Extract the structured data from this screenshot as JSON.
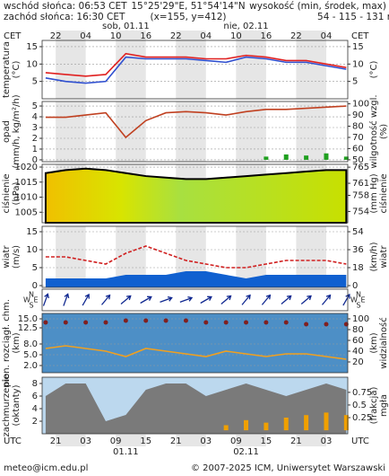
{
  "header": {
    "sunrise": "wschód słońca: 06:53 CET",
    "sunset": "zachód słońca: 16:30 CET",
    "coords": "15°25'29\"E, 51°54'14\"N",
    "grid": "(x=155, y=412)",
    "height_label": "wysokość (min, środek, max)",
    "height": "54 - 115 - 131 m"
  },
  "time": {
    "xlim": [
      -4.7,
      56.3
    ],
    "top_label": "CET",
    "bottom_label": "UTC",
    "top_ticks": [
      {
        "value": -2,
        "label": "22"
      },
      {
        "value": 4,
        "label": "04"
      },
      {
        "value": 10,
        "label": "10"
      },
      {
        "value": 16,
        "label": "16"
      },
      {
        "value": 22,
        "label": "22"
      },
      {
        "value": 28,
        "label": "04"
      },
      {
        "value": 34,
        "label": "10"
      },
      {
        "value": 40,
        "label": "16"
      },
      {
        "value": 46,
        "label": "22"
      },
      {
        "value": 52,
        "label": "04"
      }
    ],
    "bottom_ticks": [
      {
        "value": -2,
        "label": "21"
      },
      {
        "value": 4,
        "label": "03"
      },
      {
        "value": 10,
        "label": "09"
      },
      {
        "value": 16,
        "label": "15"
      },
      {
        "value": 22,
        "label": "21"
      },
      {
        "value": 28,
        "label": "03"
      },
      {
        "value": 34,
        "label": "09"
      },
      {
        "value": 40,
        "label": "15"
      },
      {
        "value": 46,
        "label": "21"
      },
      {
        "value": 52,
        "label": "03"
      }
    ],
    "top_days": [
      {
        "value": 12,
        "label": "sob, 01.11"
      },
      {
        "value": 36,
        "label": "nie, 02.11"
      }
    ],
    "bottom_days": [
      {
        "value": 12,
        "label": "01.11"
      },
      {
        "value": 36,
        "label": "02.11"
      }
    ]
  },
  "compass": [
    "W",
    "N",
    "E",
    "S"
  ],
  "footer": {
    "left": "meteo@icm.edu.pl",
    "right": "© 2007-2025 ICM, Uniwersytet Warszawski"
  },
  "chart_data": [
    {
      "type": "line",
      "ylabel": [
        "temperatura",
        "(°C)"
      ],
      "y2label": [
        "(°C)"
      ],
      "x": [
        -4,
        0,
        4,
        8,
        12,
        16,
        20,
        24,
        28,
        32,
        36,
        40,
        44,
        48,
        52,
        56
      ],
      "ylim": [
        0,
        16.8
      ],
      "yticks": [
        15,
        10,
        5
      ],
      "y2lim": [
        0,
        16.8
      ],
      "y2ticks": [
        15,
        10,
        5
      ],
      "grid": true,
      "series": [
        {
          "kind": "line",
          "color": "#e02020",
          "values": [
            7.5,
            7,
            6.5,
            7,
            13,
            12,
            12,
            12,
            11.5,
            11.5,
            12.5,
            12,
            11,
            11,
            10,
            9
          ]
        },
        {
          "kind": "line",
          "color": "#3050d0",
          "values": [
            6,
            5,
            4.5,
            5,
            12,
            11.5,
            11.5,
            11.5,
            11,
            10.5,
            12,
            11.5,
            10.5,
            10.5,
            9.5,
            8.5
          ]
        }
      ]
    },
    {
      "type": "line",
      "ylabel": [
        "opad",
        "(mm/h, kg/m²/h)"
      ],
      "y2label": [
        "wilgotność wzgl.",
        "(%)"
      ],
      "x": [
        -4,
        0,
        4,
        8,
        12,
        16,
        20,
        24,
        28,
        32,
        36,
        40,
        44,
        48,
        52,
        56
      ],
      "ylim": [
        -0.17,
        5.42
      ],
      "yticks": [
        5,
        4,
        3,
        2,
        1,
        0
      ],
      "y2lim": [
        48.3,
        102.1
      ],
      "y2ticks": [
        100,
        90,
        80,
        70,
        60,
        50
      ],
      "grid": true,
      "series": [
        {
          "kind": "bars",
          "color": "#20a020",
          "values": [
            0,
            0,
            0,
            0,
            0,
            0,
            0,
            0,
            0,
            0,
            0,
            0.3,
            0.5,
            0.4,
            0.6,
            0.3
          ]
        },
        {
          "kind": "line",
          "axis": "y2",
          "color": "#c04020",
          "values": [
            88,
            88,
            90,
            92,
            70,
            85,
            92,
            93,
            92,
            90,
            93,
            95,
            95,
            96,
            97,
            98
          ]
        }
      ]
    },
    {
      "type": "line",
      "ylabel": [
        "ciśnienie",
        "(hPa)"
      ],
      "y2label": [
        "(mm Hg)",
        "ciśnienie"
      ],
      "x": [
        -4,
        0,
        4,
        8,
        12,
        16,
        20,
        24,
        28,
        32,
        36,
        40,
        44,
        48,
        52,
        56
      ],
      "ylim": [
        1001.5,
        1020.9
      ],
      "yticks": [
        1020,
        1015,
        1010,
        1005
      ],
      "y2lim": [
        751.2,
        765.7
      ],
      "y2ticks": [
        765,
        761,
        758,
        754
      ],
      "grid": true,
      "series": [
        {
          "kind": "area",
          "color": "#000000",
          "values": [
            1018,
            1019,
            1019.5,
            1019,
            1018,
            1017,
            1016.5,
            1016,
            1016,
            1016.5,
            1017,
            1017.5,
            1018,
            1018.5,
            1019,
            1019
          ]
        }
      ]
    },
    {
      "type": "line",
      "ylabel": [
        "wiatr",
        "(m/s)"
      ],
      "y2label": [
        "(km/h)",
        "wiatr"
      ],
      "x": [
        -4,
        0,
        4,
        8,
        12,
        16,
        20,
        24,
        28,
        32,
        36,
        40,
        44,
        48,
        52,
        56
      ],
      "ylim": [
        -0.5,
        16.5
      ],
      "yticks": [
        15,
        10,
        5,
        0
      ],
      "y2lim": [
        -1.8,
        59.4
      ],
      "y2ticks": [
        54,
        36,
        18,
        0
      ],
      "grid": true,
      "series": [
        {
          "kind": "area",
          "color": "#1060d0",
          "values": [
            2,
            2,
            2,
            2,
            3,
            3,
            3,
            4,
            4,
            3,
            2,
            3,
            3,
            3,
            3,
            3
          ]
        },
        {
          "kind": "line",
          "color": "#d02020",
          "dash": true,
          "values": [
            8,
            8,
            7,
            6,
            9,
            11,
            9,
            7,
            6,
            5,
            5,
            6,
            7,
            7,
            7,
            6
          ]
        }
      ]
    },
    {
      "type": "arrows",
      "color": "#102890",
      "x": [
        -4,
        0,
        4,
        8,
        12,
        16,
        20,
        24,
        28,
        32,
        36,
        40,
        44,
        48,
        52,
        56
      ],
      "values": [
        200,
        200,
        210,
        220,
        230,
        240,
        250,
        250,
        240,
        230,
        220,
        220,
        230,
        230,
        220,
        210
      ]
    },
    {
      "type": "line",
      "ylabel": [
        "pion. rozciągł. chm.",
        "(km)"
      ],
      "y2label": [
        "(km)",
        "widzialność"
      ],
      "background": "#4d8fc6",
      "x": [
        -4,
        0,
        4,
        8,
        12,
        16,
        20,
        24,
        28,
        32,
        36,
        40,
        44,
        48,
        52,
        56
      ],
      "ylim": [
        0,
        16.5
      ],
      "yticks": [
        {
          "value": 15,
          "label": "15.0"
        },
        {
          "value": 12.5,
          "label": "12.5"
        },
        {
          "value": 8,
          "label": "8.0"
        },
        {
          "value": 5,
          "label": "5.0"
        },
        {
          "value": 2,
          "label": "2.0"
        }
      ],
      "y2lim": [
        0,
        110
      ],
      "y2ticks": [
        100,
        80,
        60,
        40,
        20
      ],
      "grid": true,
      "series": [
        {
          "kind": "dots",
          "color": "#802020",
          "values": [
            14,
            14,
            14,
            14,
            14.5,
            14.5,
            14.5,
            14.5,
            14,
            14,
            14,
            14,
            14,
            13.5,
            13.5,
            13.5
          ]
        },
        {
          "kind": "line",
          "axis": "y2",
          "color": "#f0a020",
          "values": [
            45,
            50,
            45,
            40,
            30,
            45,
            40,
            35,
            30,
            40,
            35,
            30,
            35,
            35,
            30,
            25
          ]
        }
      ]
    },
    {
      "type": "line",
      "ylabel": [
        "zachmurzenie",
        "(oktanty)"
      ],
      "y2label": [
        "(frakcja)",
        "mgła"
      ],
      "background": "#bcd8ee",
      "x": [
        -4,
        0,
        4,
        8,
        12,
        16,
        20,
        24,
        28,
        32,
        36,
        40,
        44,
        48,
        52,
        56
      ],
      "ylim": [
        0,
        9
      ],
      "yticks": [
        8,
        6,
        4,
        2
      ],
      "y2lim": [
        -0.07,
        1.05
      ],
      "y2ticks": [
        0.75,
        0.5,
        0.25
      ],
      "grid": false,
      "series": [
        {
          "kind": "area",
          "color": "#7a7a7a",
          "values": [
            6,
            8,
            8,
            2,
            3,
            7,
            8,
            8,
            6,
            7,
            8,
            7,
            6,
            7,
            8,
            7
          ]
        },
        {
          "kind": "bars",
          "axis": "y2",
          "color": "#f0a000",
          "values": [
            0,
            0,
            0,
            0,
            0,
            0,
            0,
            0,
            0,
            0.1,
            0.2,
            0.15,
            0.25,
            0.3,
            0.35,
            0.3
          ]
        }
      ]
    }
  ]
}
